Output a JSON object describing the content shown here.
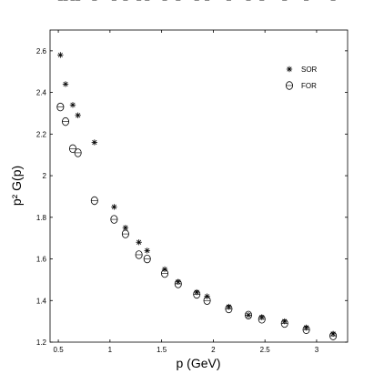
{
  "chart_data": {
    "type": "scatter",
    "xlabel": "p (GeV)",
    "ylabel": "p² G(p)",
    "xlim": [
      0.42,
      3.3
    ],
    "ylim": [
      1.2,
      2.7
    ],
    "xticks": [
      "0.5",
      "1",
      "1.5",
      "2",
      "2.5",
      "3"
    ],
    "xtick_values": [
      0.5,
      1,
      1.5,
      2,
      2.5,
      3
    ],
    "yticks": [
      "1.2",
      "1.4",
      "1.6",
      "1.8",
      "2",
      "2.2",
      "2.4",
      "2.6"
    ],
    "ytick_values": [
      1.2,
      1.4,
      1.6,
      1.8,
      2.0,
      2.2,
      2.4,
      2.6
    ],
    "grid": false,
    "legend_position": "top-right",
    "series": [
      {
        "name": "SOR",
        "marker": "star",
        "color": "#000000",
        "x": [
          0.52,
          0.57,
          0.64,
          0.69,
          0.85,
          1.04,
          1.15,
          1.28,
          1.36,
          1.53,
          1.66,
          1.84,
          1.94,
          2.15,
          2.34,
          2.47,
          2.69,
          2.9,
          3.16
        ],
        "y": [
          2.58,
          2.44,
          2.34,
          2.29,
          2.16,
          1.85,
          1.75,
          1.68,
          1.64,
          1.55,
          1.49,
          1.44,
          1.42,
          1.37,
          1.33,
          1.32,
          1.3,
          1.27,
          1.24
        ],
        "err": [
          0.025,
          0.02,
          0.015,
          0.015,
          0.015,
          0.01,
          0.01,
          0.01,
          0.01,
          0.01,
          0.01,
          0.01,
          0.01,
          0.01,
          0.01,
          0.01,
          0.01,
          0.01,
          0.01
        ]
      },
      {
        "name": "FOR",
        "marker": "circle",
        "color": "#000000",
        "x": [
          0.52,
          0.57,
          0.64,
          0.69,
          0.85,
          1.04,
          1.15,
          1.28,
          1.36,
          1.53,
          1.66,
          1.84,
          1.94,
          2.15,
          2.34,
          2.47,
          2.69,
          2.9,
          3.16
        ],
        "y": [
          2.33,
          2.26,
          2.13,
          2.11,
          1.88,
          1.79,
          1.72,
          1.62,
          1.6,
          1.53,
          1.48,
          1.43,
          1.4,
          1.36,
          1.33,
          1.31,
          1.29,
          1.26,
          1.23
        ]
      }
    ]
  }
}
